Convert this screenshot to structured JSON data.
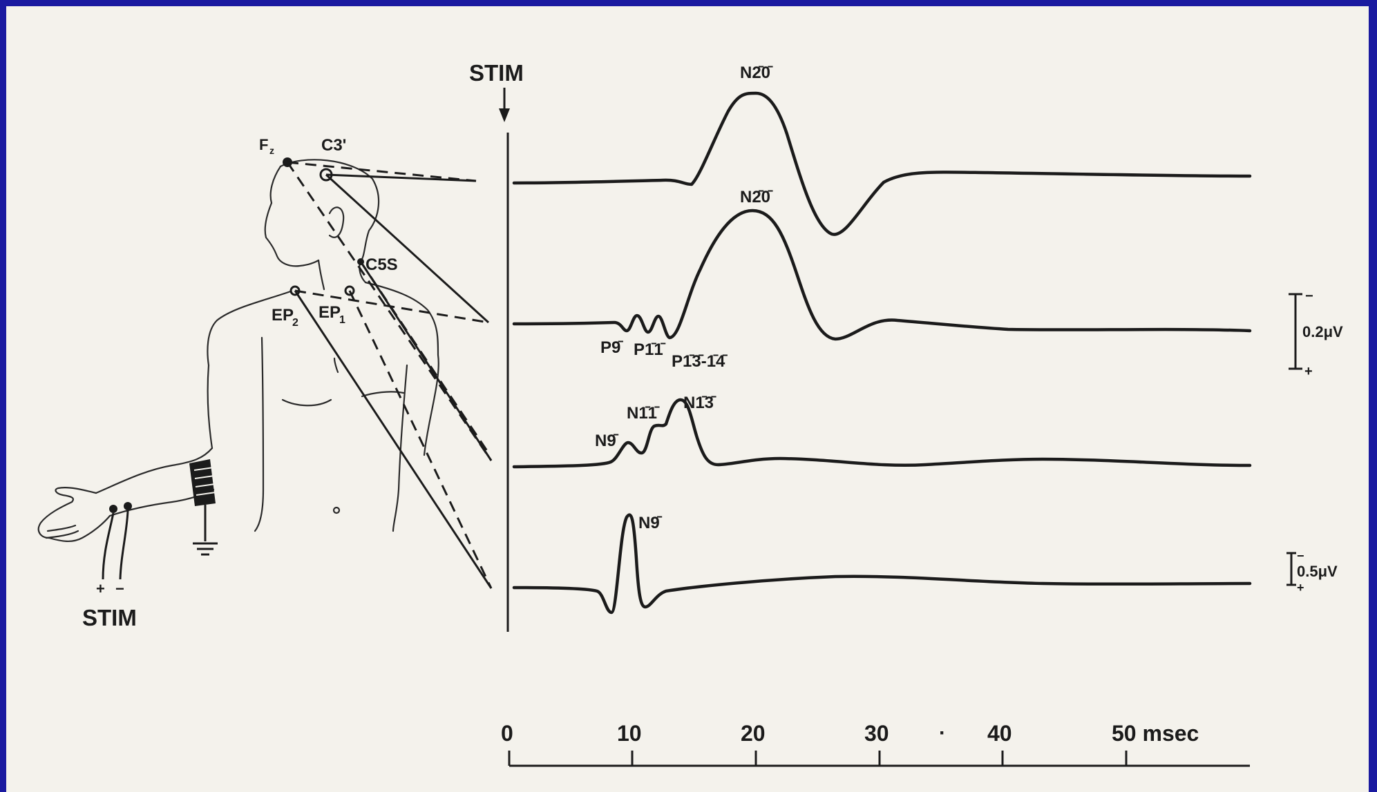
{
  "stim_top": "STIM",
  "stim_bottom": "STIM",
  "electrodes": {
    "fz": "F",
    "fz_sub": "z",
    "c3": "C3'",
    "c5s": "C5S",
    "ep2": "EP",
    "ep2_sub": "2",
    "ep1": "EP",
    "ep1_sub": "1"
  },
  "polarity": {
    "plus": "+",
    "minus": "−"
  },
  "peaks": {
    "n20_a": "N2̄0̄",
    "n20_b": "N2̄0̄",
    "p9": "P9̄",
    "p11": "P1̄1̄",
    "p13_14": "P1̄3̄-1̄4̄",
    "n9_c": "N9̄",
    "n11": "N1̄1̄",
    "n13": "N1̄3̄",
    "n9_d": "N9̄"
  },
  "scales": {
    "upper": "0.2μV",
    "lower": "0.5μV",
    "minus": "−",
    "plus": "+"
  },
  "time_axis": {
    "ticks": [
      "0",
      "10",
      "20",
      "30",
      "40",
      "50 msec"
    ],
    "dot": "·"
  }
}
